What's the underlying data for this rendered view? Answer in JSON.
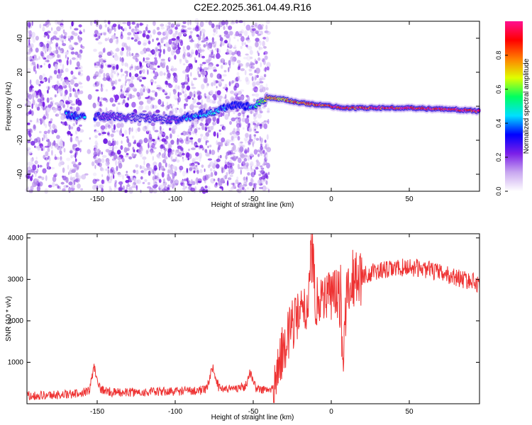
{
  "title": "C2E2.2025.361.04.49.R16",
  "chart_data": [
    {
      "type": "heatmap",
      "xlabel": "Height of straight line (km)",
      "ylabel": "Frequency (Hz)",
      "xlim": [
        -195,
        95
      ],
      "ylim": [
        -50,
        50
      ],
      "xticks": [
        -150,
        -100,
        -50,
        0,
        50
      ],
      "yticks": [
        -40,
        -20,
        0,
        20,
        40
      ],
      "colorbar": {
        "label": "Normalized spectral amplitude",
        "range": [
          0,
          1
        ],
        "ticks": [
          "0.0",
          "0.2",
          "0.4",
          "0.6",
          "0.8"
        ],
        "tick_values": [
          0,
          0.2,
          0.4,
          0.6,
          0.8
        ],
        "colors": [
          "#ffffff",
          "#c9a8f0",
          "#7b1fe8",
          "#0000ff",
          "#00e0ff",
          "#00ff60",
          "#e0ff00",
          "#ff8000",
          "#ff0000",
          "#ff1090"
        ]
      },
      "noise_region_km": [
        -195,
        -40
      ],
      "gap_km": [
        -160,
        -152
      ],
      "ridge": {
        "x": [
          -170,
          -160,
          -152,
          -145,
          -120,
          -100,
          -95,
          -85,
          -75,
          -65,
          -60,
          -55,
          -50,
          -45,
          -40,
          -30,
          -20,
          -10,
          0,
          10,
          20,
          30,
          50,
          80,
          95
        ],
        "freq": [
          -5,
          -6,
          -6,
          -6,
          -7,
          -8,
          -7,
          -5,
          -3,
          0,
          1,
          0,
          0,
          3,
          5,
          4,
          2,
          1,
          0,
          -1,
          -1,
          -1,
          -1,
          -2,
          -3
        ],
        "amplitude": [
          0.35,
          0.4,
          0.3,
          0.2,
          0.15,
          0.2,
          0.35,
          0.4,
          0.45,
          0.35,
          0.3,
          0.35,
          0.4,
          0.55,
          0.7,
          0.75,
          0.8,
          0.85,
          0.9,
          0.9,
          0.9,
          0.95,
          0.95,
          0.95,
          0.9
        ]
      }
    },
    {
      "type": "line",
      "xlabel": "Height of straight line (km)",
      "ylabel": "SNR (10 * v/v)",
      "xlim": [
        -195,
        95
      ],
      "ylim": [
        0,
        4100
      ],
      "xticks": [
        -150,
        -100,
        -50,
        0,
        50
      ],
      "yticks": [
        1000,
        2000,
        3000,
        4000
      ],
      "color": "#ee3333",
      "series": [
        {
          "name": "SNR",
          "x": [
            -195,
            -180,
            -165,
            -155,
            -152,
            -148,
            -140,
            -120,
            -100,
            -80,
            -76,
            -72,
            -65,
            -55,
            -52,
            -48,
            -40,
            -36,
            -34,
            -30,
            -25,
            -20,
            -15,
            -13,
            -10,
            -5,
            0,
            5,
            8,
            10,
            15,
            20,
            30,
            40,
            50,
            60,
            70,
            80,
            95
          ],
          "y": [
            200,
            210,
            230,
            320,
            900,
            350,
            270,
            280,
            300,
            330,
            900,
            380,
            360,
            420,
            750,
            360,
            320,
            400,
            900,
            1400,
            1900,
            2100,
            2300,
            4050,
            2500,
            2600,
            2650,
            2700,
            1100,
            2900,
            3000,
            3100,
            3200,
            3250,
            3300,
            3250,
            3150,
            3050,
            2900
          ]
        }
      ]
    }
  ]
}
